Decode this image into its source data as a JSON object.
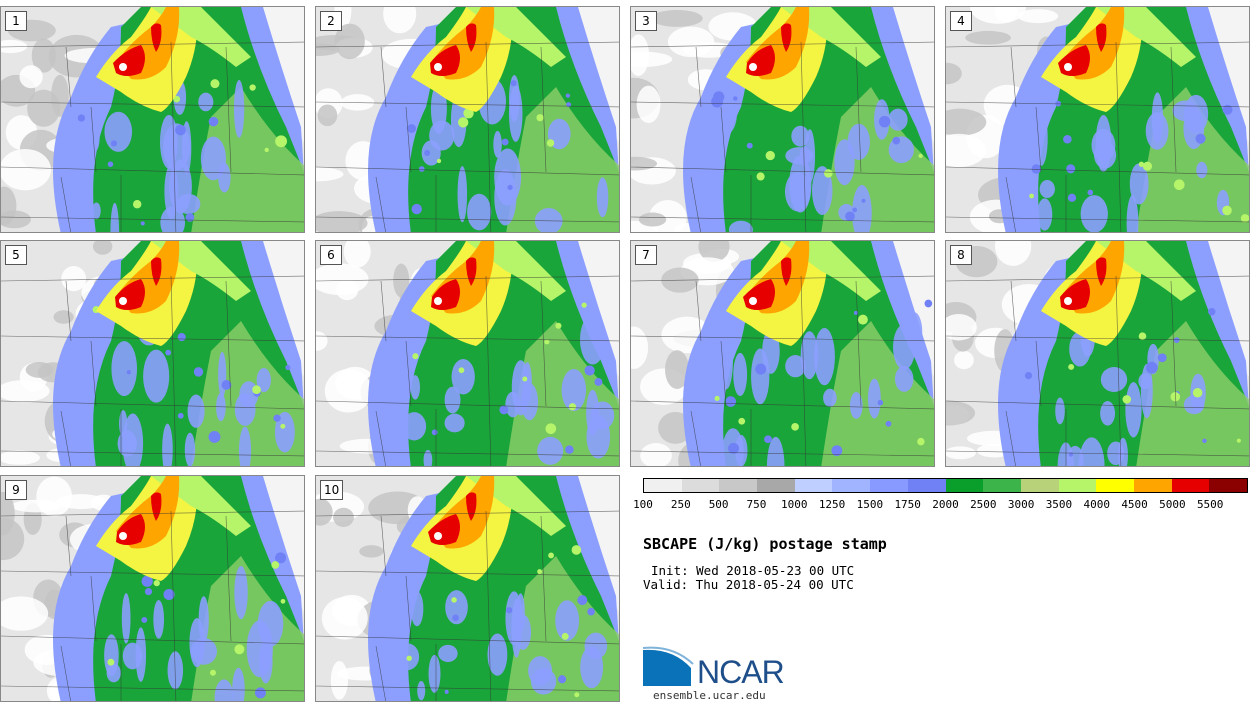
{
  "panels": [
    {
      "label": "1"
    },
    {
      "label": "2"
    },
    {
      "label": "3"
    },
    {
      "label": "4"
    },
    {
      "label": "5"
    },
    {
      "label": "6"
    },
    {
      "label": "7"
    },
    {
      "label": "8"
    },
    {
      "label": "9"
    },
    {
      "label": "10"
    }
  ],
  "colorbar": {
    "colors": [
      "#f0f0f0",
      "#dcdcdc",
      "#c8c8c8",
      "#a8a8a8",
      "#bfcfff",
      "#a0b4ff",
      "#8899ff",
      "#7081f5",
      "#0a9e2a",
      "#3cb44a",
      "#b8d27a",
      "#b6f56a",
      "#ffff00",
      "#ffa500",
      "#e60000",
      "#8b0000"
    ],
    "ticks": [
      "100",
      "250",
      "500",
      "750",
      "1000",
      "1250",
      "1500",
      "1750",
      "2000",
      "2500",
      "3000",
      "3500",
      "4000",
      "4500",
      "5000",
      "5500"
    ]
  },
  "title": "SBCAPE (J/kg) postage stamp",
  "init": "Init: Wed 2018-05-23 00 UTC",
  "valid": "Valid: Thu 2018-05-24 00 UTC",
  "logo": {
    "text": "NCAR",
    "site": "ensemble.ucar.edu",
    "color": "#1f4f8a",
    "accent": "#0a72b8"
  }
}
